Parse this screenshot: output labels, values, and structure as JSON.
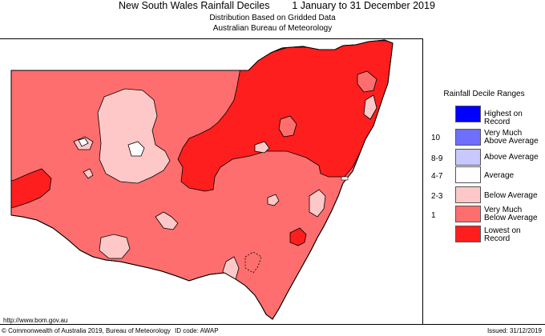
{
  "header": {
    "title": "New South Wales Rainfall Deciles",
    "period": "1 January to 31 December 2019",
    "subtitle1": "Distribution Based on Gridded Data",
    "subtitle2": "Australian Bureau of Meteorology"
  },
  "legend": {
    "title": "Rainfall Decile Ranges",
    "items": [
      {
        "decile": "",
        "label": "Highest on Record",
        "color": "#0000ff"
      },
      {
        "decile": "10",
        "label": "Very Much Above Average",
        "color": "#6e6eff"
      },
      {
        "decile": "8-9",
        "label": "Above Average",
        "color": "#c8c8ff"
      },
      {
        "decile": "4-7",
        "label": "Average",
        "color": "#ffffff"
      },
      {
        "decile": "2-3",
        "label": "Below Average",
        "color": "#ffc8c8"
      },
      {
        "decile": "1",
        "label": "Very Much Below Average",
        "color": "#ff6e6e"
      },
      {
        "decile": "",
        "label": "Lowest on Record",
        "color": "#ff1e1e"
      }
    ]
  },
  "footer": {
    "url": "http://www.bom.gov.au",
    "copyright": "© Commonwealth of Australia 2019, Bureau of Meteorology",
    "id_code": "ID code: AWAP",
    "issued": "Issued: 31/12/2019"
  },
  "colors": {
    "lowest": "#ff1e1e",
    "very_much_below": "#ff6e6e",
    "below": "#ffc8c8",
    "average": "#ffffff"
  }
}
